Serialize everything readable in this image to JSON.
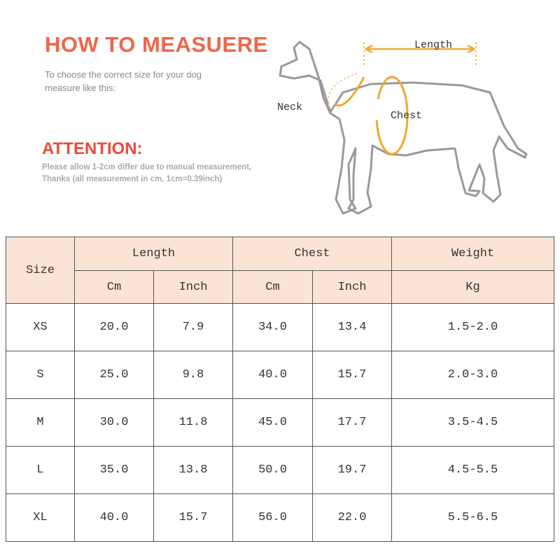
{
  "header": {
    "title": "HOW TO MEASUERE",
    "lines": [
      "To choose the correct size for your dog",
      "measure like this:"
    ]
  },
  "attention": {
    "title": "ATTENTION:",
    "lines": [
      "Please allow 1-2cm differ due to manual measurement,",
      "Thanks (all measurement in cm, 1cm=0.39inch)"
    ]
  },
  "diagram": {
    "length": "Length",
    "neck": "Neck",
    "chest": "Chest"
  },
  "table": {
    "size_header": "Size",
    "groups": [
      "Length",
      "Chest",
      "Weight"
    ],
    "units": [
      "Cm",
      "Inch",
      "Cm",
      "Inch",
      "Kg"
    ],
    "rows": [
      [
        "XS",
        "20.0",
        "7.9",
        "34.0",
        "13.4",
        "1.5-2.0"
      ],
      [
        "S",
        "25.0",
        "9.8",
        "40.0",
        "15.7",
        "2.0-3.0"
      ],
      [
        "M",
        "30.0",
        "11.8",
        "45.0",
        "17.7",
        "3.5-4.5"
      ],
      [
        "L",
        "35.0",
        "13.8",
        "50.0",
        "19.7",
        "4.5-5.5"
      ],
      [
        "XL",
        "40.0",
        "15.7",
        "56.0",
        "22.0",
        "5.5-6.5"
      ]
    ]
  }
}
